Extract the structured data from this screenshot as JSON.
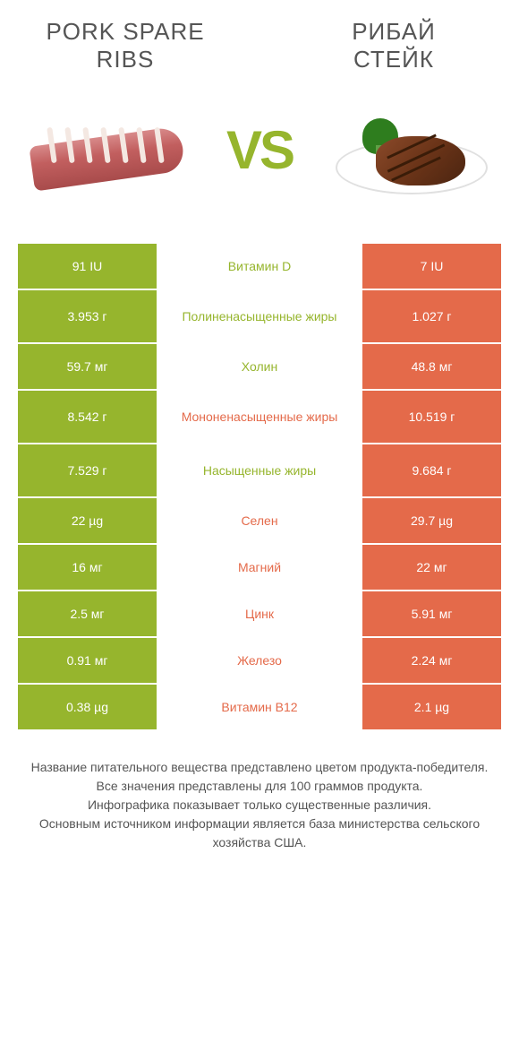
{
  "colors": {
    "green": "#96b52d",
    "orange": "#e46a4a",
    "text_gray": "#555555"
  },
  "header": {
    "left_title": "PORK SPARE\nRIBS",
    "right_title": "РИБАЙ\nСТЕЙК",
    "vs": "VS"
  },
  "rows": [
    {
      "left": "91 IU",
      "mid": "Витамин D",
      "right": "7 IU",
      "winner": "left",
      "tall": false
    },
    {
      "left": "3.953 г",
      "mid": "Полиненасыщенные жиры",
      "right": "1.027 г",
      "winner": "left",
      "tall": true
    },
    {
      "left": "59.7 мг",
      "mid": "Холин",
      "right": "48.8 мг",
      "winner": "left",
      "tall": false
    },
    {
      "left": "8.542 г",
      "mid": "Мононенасыщенные жиры",
      "right": "10.519 г",
      "winner": "right",
      "tall": true
    },
    {
      "left": "7.529 г",
      "mid": "Насыщенные жиры",
      "right": "9.684 г",
      "winner": "left",
      "tall": true
    },
    {
      "left": "22 µg",
      "mid": "Селен",
      "right": "29.7 µg",
      "winner": "right",
      "tall": false
    },
    {
      "left": "16 мг",
      "mid": "Магний",
      "right": "22 мг",
      "winner": "right",
      "tall": false
    },
    {
      "left": "2.5 мг",
      "mid": "Цинк",
      "right": "5.91 мг",
      "winner": "right",
      "tall": false
    },
    {
      "left": "0.91 мг",
      "mid": "Железо",
      "right": "2.24 мг",
      "winner": "right",
      "tall": false
    },
    {
      "left": "0.38 µg",
      "mid": "Витамин B12",
      "right": "2.1 µg",
      "winner": "right",
      "tall": false
    }
  ],
  "footer": {
    "line1": "Название питательного вещества представлено цветом продукта-победителя.",
    "line2": "Все значения представлены для 100 граммов продукта.",
    "line3": "Инфографика показывает только существенные различия.",
    "line4": "Основным источником информации является база министерства сельского хозяйства США."
  }
}
